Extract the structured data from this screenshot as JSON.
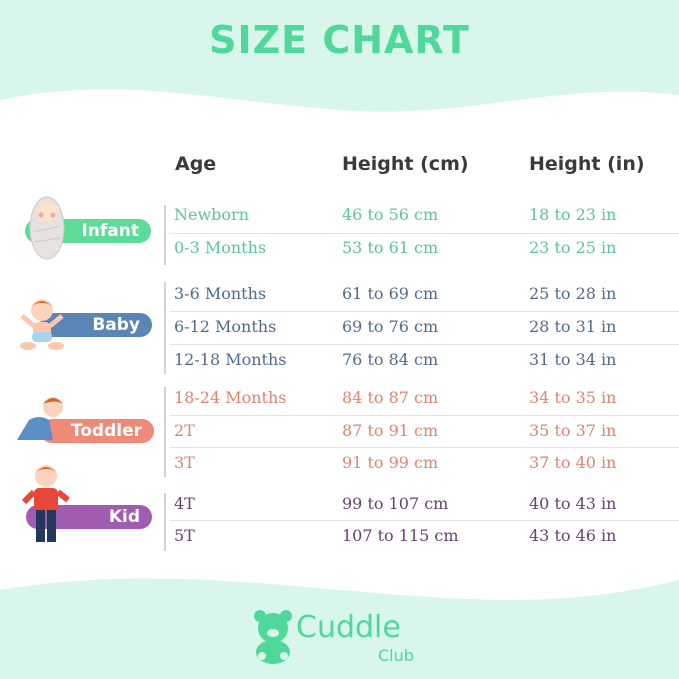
{
  "title": "SIZE CHART",
  "headers": {
    "age": "Age",
    "height_cm": "Height (cm)",
    "height_in": "Height (in)"
  },
  "colors": {
    "title": "#4fd89a",
    "background_wave": "#d9f6ec",
    "infant": "#5cc595",
    "baby": "#4f6b8f",
    "toddler": "#e0846f",
    "kid": "#6b3f73"
  },
  "groups": [
    {
      "label": "Infant",
      "rows": [
        {
          "age": "Newborn",
          "cm": "46 to 56 cm",
          "in": "18 to 23 in"
        },
        {
          "age": "0-3 Months",
          "cm": "53 to 61 cm",
          "in": "23 to 25 in"
        }
      ]
    },
    {
      "label": "Baby",
      "rows": [
        {
          "age": "3-6 Months",
          "cm": "61 to 69 cm",
          "in": "25 to 28 in"
        },
        {
          "age": "6-12 Months",
          "cm": "69 to 76 cm",
          "in": "28 to 31 in"
        },
        {
          "age": "12-18 Months",
          "cm": "76 to 84 cm",
          "in": "31 to 34 in"
        }
      ]
    },
    {
      "label": "Toddler",
      "rows": [
        {
          "age": "18-24 Months",
          "cm": "84 to 87 cm",
          "in": "34 to 35 in"
        },
        {
          "age": "2T",
          "cm": "87 to 91 cm",
          "in": "35 to 37 in"
        },
        {
          "age": "3T",
          "cm": "91 to 99 cm",
          "in": "37 to 40 in"
        }
      ]
    },
    {
      "label": "Kid",
      "rows": [
        {
          "age": "4T",
          "cm": "99 to 107 cm",
          "in": "40 to 43 in"
        },
        {
          "age": "5T",
          "cm": "107 to 115 cm",
          "in": "43 to 46 in"
        }
      ]
    }
  ],
  "logo": {
    "name": "Cuddle",
    "sub": "Club",
    "icon": "teddy-bear-icon"
  }
}
